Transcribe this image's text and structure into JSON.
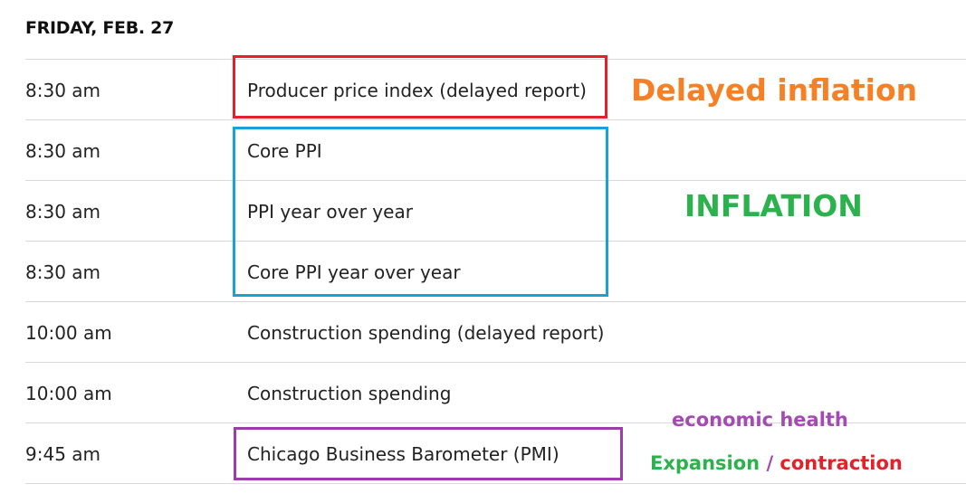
{
  "heading": "FRIDAY, FEB. 27",
  "rows": [
    {
      "time": "8:30 am",
      "event": "Producer price index (delayed report)"
    },
    {
      "time": "8:30 am",
      "event": "Core PPI"
    },
    {
      "time": "8:30 am",
      "event": "PPI year over year"
    },
    {
      "time": "8:30 am",
      "event": "Core PPI year over year"
    },
    {
      "time": "10:00 am",
      "event": "Construction spending (delayed report)"
    },
    {
      "time": "10:00 am",
      "event": "Construction spending"
    },
    {
      "time": "9:45 am",
      "event": "Chicago Business Barometer (PMI)"
    }
  ],
  "annotations": {
    "delayed_inflation": "Delayed inflation",
    "inflation": "INFLATION",
    "economic_health": "economic health",
    "expansion": "Expansion",
    "slash": "/",
    "contraction": "contraction"
  },
  "colors": {
    "red_box": "#e3212b",
    "blue_box": "#1aa0dc",
    "purple_box": "#9b3fa8",
    "orange_text": "#f58025",
    "green_text": "#2bb24c",
    "purple_text": "#a44ab3",
    "red_text": "#e3212b"
  }
}
